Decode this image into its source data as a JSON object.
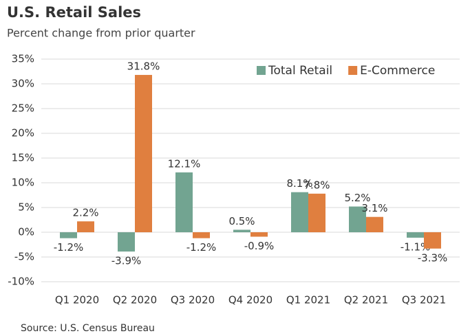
{
  "chart_data": {
    "type": "bar",
    "title": "U.S. Retail Sales",
    "subtitle": "Percent change from prior quarter",
    "source": "Source: U.S. Census Bureau",
    "categories": [
      "Q1 2020",
      "Q2 2020",
      "Q3 2020",
      "Q4 2020",
      "Q1 2021",
      "Q2 2021",
      "Q3 2021"
    ],
    "series": [
      {
        "name": "Total Retail",
        "color": "#72a491",
        "values": [
          -1.2,
          -3.9,
          12.1,
          0.5,
          8.1,
          5.2,
          -1.1
        ],
        "value_labels": [
          "-1.2%",
          "-3.9%",
          "12.1%",
          "0.5%",
          "8.1%",
          "5.2%",
          "-1.1%"
        ]
      },
      {
        "name": "E-Commerce",
        "color": "#e07f3f",
        "values": [
          2.2,
          31.8,
          -1.2,
          -0.9,
          7.8,
          3.1,
          -3.3
        ],
        "value_labels": [
          "2.2%",
          "31.8%",
          "-1.2%",
          "-0.9%",
          "7.8%",
          "3.1%",
          "-3.3%"
        ]
      }
    ],
    "ylim": [
      -10,
      35
    ],
    "yticks": [
      {
        "value": -10,
        "label": "-10%"
      },
      {
        "value": -5,
        "label": "-5%"
      },
      {
        "value": 0,
        "label": "0%"
      },
      {
        "value": 5,
        "label": "5%"
      },
      {
        "value": 10,
        "label": "10%"
      },
      {
        "value": 15,
        "label": "15%"
      },
      {
        "value": 20,
        "label": "20%"
      },
      {
        "value": 25,
        "label": "25%"
      },
      {
        "value": 30,
        "label": "30%"
      },
      {
        "value": 35,
        "label": "35%"
      }
    ],
    "grid": true,
    "legend": "upper right"
  }
}
